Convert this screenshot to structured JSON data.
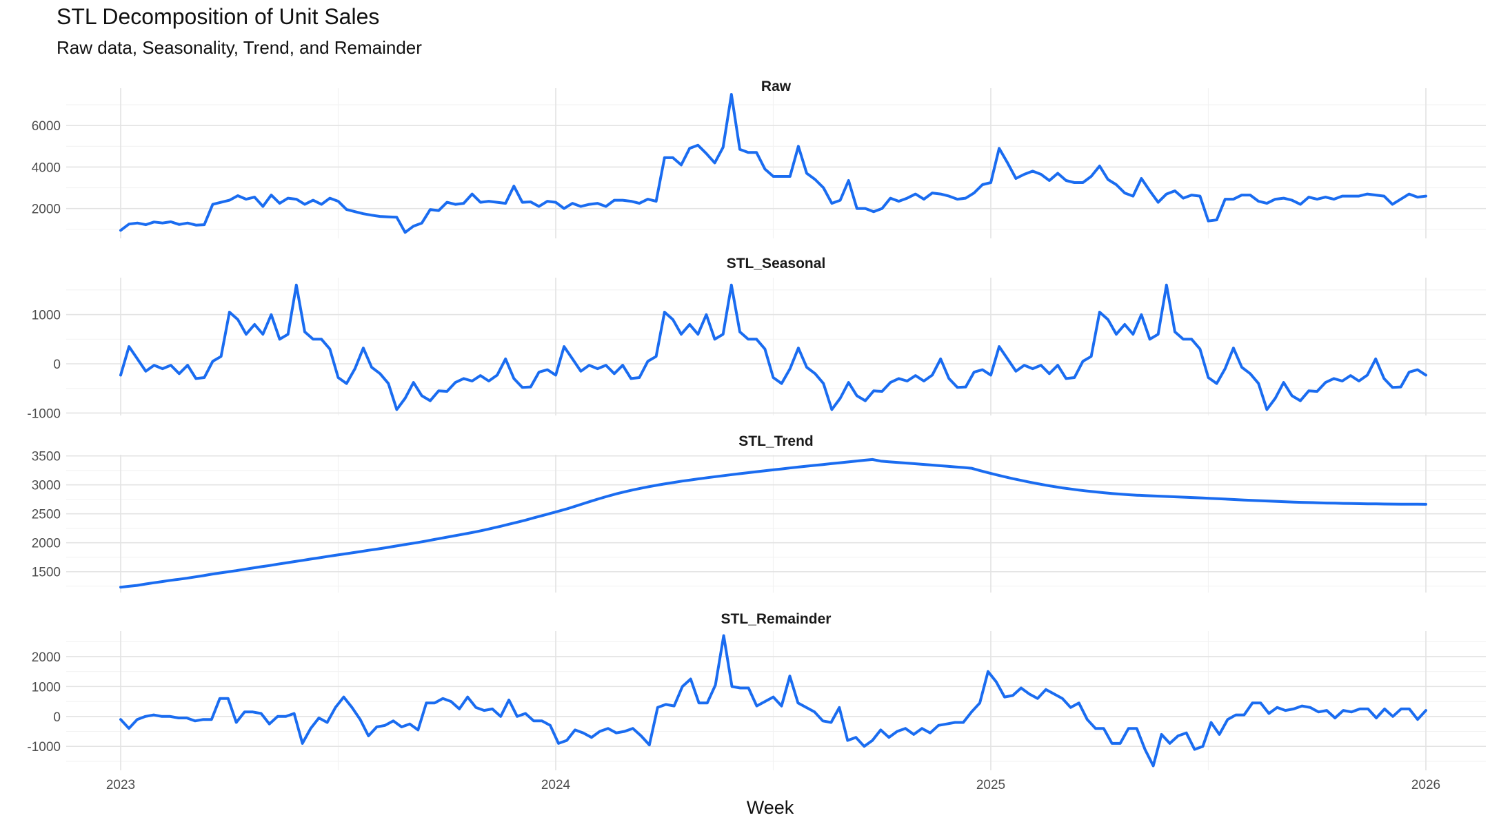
{
  "title": "STL Decomposition of Unit Sales",
  "subtitle": "Raw data, Seasonality, Trend, and Remainder",
  "line_color": "#1a6cf0",
  "chart_data": {
    "type": "line",
    "xlabel": "Week",
    "x_ticks": [
      "2023",
      "2024",
      "2025",
      "2026"
    ],
    "x_range": [
      "2023-01-01",
      "2026-01-01"
    ],
    "period_weeks": 52,
    "panels": [
      {
        "name": "Raw",
        "yticks": [
          2000,
          4000,
          6000
        ],
        "ylim": [
          560,
          7800
        ],
        "values": [
          950,
          1250,
          1300,
          1220,
          1350,
          1300,
          1360,
          1230,
          1300,
          1200,
          1220,
          2200,
          2300,
          2400,
          2620,
          2450,
          2550,
          2100,
          2650,
          2250,
          2500,
          2450,
          2200,
          2400,
          2200,
          2500,
          2350,
          1950,
          1850,
          1750,
          1680,
          1620,
          1600,
          1580,
          850,
          1150,
          1300,
          1950,
          1900,
          2300,
          2200,
          2250,
          2700,
          2300,
          2350,
          2300,
          2250,
          3080,
          2300,
          2320,
          2100,
          2350,
          2300,
          2000,
          2250,
          2100,
          2200,
          2250,
          2100,
          2400,
          2400,
          2350,
          2250,
          2450,
          2350,
          4450,
          4450,
          4100,
          4900,
          5050,
          4650,
          4200,
          4950,
          7500,
          4850,
          4700,
          4700,
          3900,
          3550,
          3550,
          3550,
          5000,
          3700,
          3400,
          3000,
          2250,
          2400,
          3350,
          2000,
          2000,
          1850,
          2000,
          2500,
          2350,
          2500,
          2700,
          2450,
          2750,
          2700,
          2600,
          2450,
          2500,
          2750,
          3150,
          3250,
          4900,
          4200,
          3450,
          3650,
          3800,
          3650,
          3350,
          3700,
          3350,
          3250,
          3250,
          3550,
          4050,
          3400,
          3150,
          2750,
          2600,
          3450,
          2850,
          2300,
          2700,
          2850,
          2500,
          2650,
          2600,
          1400,
          1450,
          2450,
          2450,
          2650,
          2650,
          2350,
          2250,
          2450,
          2500,
          2400,
          2200,
          2550,
          2450,
          2550,
          2450,
          2600,
          2600,
          2600,
          2700,
          2650,
          2600,
          2200,
          2450,
          2700,
          2550,
          2600
        ]
      },
      {
        "name": "STL_Seasonal",
        "yticks": [
          -1000,
          0,
          1000
        ],
        "ylim": [
          -1050,
          1750
        ],
        "values": [
          -230,
          350,
          100,
          -150,
          -30,
          -100,
          -30,
          -200,
          -30,
          -300,
          -280,
          50,
          150,
          1050,
          900,
          600,
          800,
          600,
          1000,
          500,
          600,
          1600,
          650,
          500,
          500,
          300,
          -280,
          -400,
          -100,
          320,
          -70,
          -200,
          -400,
          -930,
          -700,
          -380,
          -650,
          -750,
          -550,
          -560,
          -380,
          -300,
          -350,
          -240,
          -350,
          -230,
          100,
          -300,
          -480,
          -470,
          -170,
          -120,
          -230,
          350,
          100,
          -150,
          -30,
          -100,
          -30,
          -200,
          -30,
          -300,
          -280,
          50,
          150,
          1050,
          900,
          600,
          800,
          600,
          1000,
          500,
          600,
          1600,
          650,
          500,
          500,
          300,
          -280,
          -400,
          -100,
          320,
          -70,
          -200,
          -400,
          -930,
          -700,
          -380,
          -650,
          -750,
          -550,
          -560,
          -380,
          -300,
          -350,
          -240,
          -350,
          -230,
          100,
          -300,
          -480,
          -470,
          -170,
          -120,
          -230,
          350,
          100,
          -150,
          -30,
          -100,
          -30,
          -200,
          -30,
          -300,
          -280,
          50,
          150,
          1050,
          900,
          600,
          800,
          600,
          1000,
          500,
          600,
          1600,
          650,
          500,
          500,
          300,
          -280,
          -400,
          -100,
          320,
          -70,
          -200,
          -400,
          -930,
          -700,
          -380,
          -650,
          -750,
          -550,
          -560,
          -380,
          -300,
          -350,
          -240,
          -350,
          -230,
          100,
          -300,
          -480,
          -470,
          -170,
          -120,
          -230
        ]
      },
      {
        "name": "STL_Trend",
        "yticks": [
          1500,
          2000,
          2500,
          3000,
          3500
        ],
        "ylim": [
          1140,
          3520
        ],
        "values": [
          1233,
          1248,
          1264,
          1287,
          1309,
          1329,
          1351,
          1369,
          1388,
          1410,
          1431,
          1457,
          1478,
          1498,
          1518,
          1542,
          1564,
          1586,
          1607,
          1630,
          1652,
          1674,
          1696,
          1718,
          1740,
          1762,
          1784,
          1805,
          1826,
          1847,
          1869,
          1890,
          1912,
          1936,
          1960,
          1983,
          2005,
          2030,
          2057,
          2084,
          2110,
          2136,
          2162,
          2190,
          2219,
          2251,
          2285,
          2320,
          2355,
          2391,
          2430,
          2468,
          2506,
          2545,
          2585,
          2630,
          2675,
          2720,
          2764,
          2806,
          2845,
          2880,
          2912,
          2942,
          2970,
          2996,
          3020,
          3043,
          3065,
          3085,
          3105,
          3124,
          3142,
          3160,
          3177,
          3194,
          3211,
          3227,
          3243,
          3259,
          3275,
          3291,
          3307,
          3322,
          3337,
          3351,
          3366,
          3380,
          3395,
          3410,
          3425,
          3438,
          3410,
          3399,
          3388,
          3377,
          3366,
          3355,
          3344,
          3333,
          3322,
          3311,
          3300,
          3287,
          3248,
          3210,
          3174,
          3140,
          3107,
          3077,
          3048,
          3020,
          2994,
          2970,
          2948,
          2928,
          2910,
          2893,
          2878,
          2864,
          2851,
          2840,
          2830,
          2822,
          2815,
          2809,
          2803,
          2797,
          2791,
          2785,
          2779,
          2773,
          2766,
          2759,
          2752,
          2745,
          2738,
          2731,
          2725,
          2719,
          2713,
          2708,
          2703,
          2698,
          2694,
          2690,
          2686,
          2683,
          2680,
          2677,
          2675,
          2673,
          2671,
          2669,
          2668,
          2667,
          2666,
          2665,
          2664
        ]
      },
      {
        "name": "STL_Remainder",
        "yticks": [
          -1000,
          0,
          1000,
          2000
        ],
        "ylim": [
          -1800,
          2850
        ],
        "values": [
          -100,
          -400,
          -100,
          0,
          50,
          0,
          0,
          -50,
          -50,
          -150,
          -100,
          -100,
          600,
          600,
          -200,
          150,
          150,
          100,
          -250,
          0,
          0,
          100,
          -900,
          -400,
          -50,
          -200,
          300,
          650,
          300,
          -100,
          -650,
          -350,
          -300,
          -150,
          -350,
          -250,
          -450,
          450,
          450,
          600,
          500,
          250,
          650,
          300,
          200,
          250,
          0,
          550,
          0,
          100,
          -150,
          -150,
          -300,
          -900,
          -800,
          -450,
          -550,
          -700,
          -500,
          -400,
          -550,
          -500,
          -400,
          -650,
          -950,
          300,
          400,
          350,
          1000,
          1250,
          450,
          450,
          1050,
          2700,
          1000,
          950,
          950,
          350,
          500,
          650,
          350,
          1350,
          450,
          300,
          150,
          -150,
          -200,
          300,
          -800,
          -700,
          -1000,
          -800,
          -450,
          -700,
          -500,
          -400,
          -600,
          -400,
          -550,
          -300,
          -250,
          -200,
          -200,
          150,
          450,
          1500,
          1150,
          650,
          700,
          950,
          750,
          600,
          900,
          750,
          600,
          300,
          450,
          -100,
          -400,
          -400,
          -900,
          -900,
          -400,
          -400,
          -1100,
          -1650,
          -600,
          -900,
          -650,
          -550,
          -1100,
          -1000,
          -200,
          -600,
          -100,
          50,
          50,
          450,
          450,
          100,
          300,
          200,
          250,
          350,
          300,
          150,
          200,
          -50,
          200,
          150,
          250,
          250,
          -50,
          250,
          0,
          250,
          250,
          -100,
          200
        ]
      }
    ]
  }
}
